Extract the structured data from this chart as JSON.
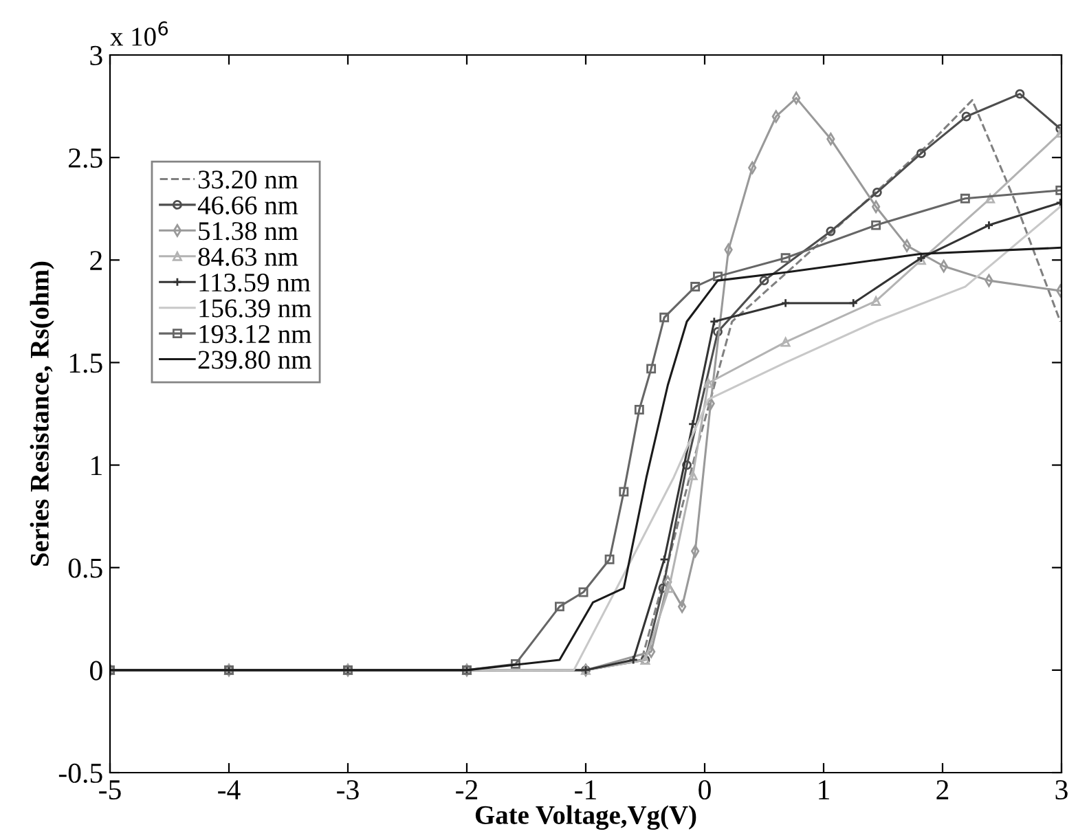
{
  "chart_data": {
    "type": "line",
    "xlabel": "Gate Voltage,Vg(V)",
    "ylabel": "Series Resistance, Rs(ohm)",
    "annotations": [
      "x 10$^{6}$"
    ],
    "xlim": [
      -5,
      3
    ],
    "xticks": [
      -5,
      -4,
      -3,
      -2,
      -1,
      0,
      1,
      2,
      3
    ],
    "ylim": [
      -0.5,
      3
    ],
    "yticks": [
      -0.5,
      0,
      0.5,
      1,
      1.5,
      2,
      2.5,
      3
    ],
    "grid": false,
    "legend": "top left",
    "series": [
      {
        "name": "33.20 nm",
        "color": "#808080",
        "line_style": "dashed",
        "marker": "none",
        "x": [
          -5,
          -4,
          -3,
          -2,
          -1,
          -0.53,
          -0.34,
          -0.08,
          0.23,
          1.0,
          1.93,
          2.25,
          2.6,
          2.99
        ],
        "values": [
          0,
          0,
          0,
          0,
          0,
          0.05,
          0.45,
          1.05,
          1.7,
          2.1,
          2.59,
          2.78,
          2.3,
          1.7
        ]
      },
      {
        "name": "46.66 nm",
        "color": "#4d4d4d",
        "marker": "circle",
        "x": [
          -5,
          -4,
          -3,
          -2,
          -1,
          -0.5,
          -0.35,
          -0.15,
          0.11,
          0.5,
          1.06,
          1.45,
          1.82,
          2.2,
          2.65,
          2.99
        ],
        "values": [
          0,
          0,
          0,
          0,
          0,
          0.05,
          0.4,
          1.0,
          1.65,
          1.9,
          2.14,
          2.33,
          2.52,
          2.7,
          2.81,
          2.64
        ]
      },
      {
        "name": "51.38 nm",
        "color": "#999999",
        "marker": "diamond",
        "x": [
          -5,
          -4,
          -3,
          -2,
          -1,
          -0.45,
          -0.31,
          -0.19,
          -0.08,
          0.05,
          0.2,
          0.4,
          0.6,
          0.77,
          1.06,
          1.44,
          1.7,
          2.01,
          2.39,
          2.99
        ],
        "values": [
          0,
          0,
          0,
          0,
          0,
          0.09,
          0.43,
          0.31,
          0.58,
          1.3,
          2.05,
          2.45,
          2.7,
          2.79,
          2.59,
          2.26,
          2.07,
          1.97,
          1.9,
          1.85
        ]
      },
      {
        "name": "84.63 nm",
        "color": "#b3b3b3",
        "marker": "triangle",
        "x": [
          -5,
          -4,
          -3,
          -2,
          -1,
          -0.5,
          -0.3,
          -0.1,
          0.03,
          0.68,
          1.44,
          1.82,
          2.4,
          2.99
        ],
        "values": [
          0,
          0,
          0,
          0,
          0,
          0.05,
          0.4,
          0.95,
          1.4,
          1.6,
          1.8,
          2.0,
          2.3,
          2.62
        ]
      },
      {
        "name": "113.59 nm",
        "color": "#333333",
        "marker": "cross",
        "x": [
          -5,
          -4,
          -3,
          -2,
          -1,
          -0.6,
          -0.34,
          -0.1,
          0.08,
          0.68,
          1.25,
          1.82,
          2.39,
          2.99
        ],
        "values": [
          0,
          0,
          0,
          0,
          0,
          0.05,
          0.54,
          1.2,
          1.7,
          1.79,
          1.79,
          2.01,
          2.17,
          2.28
        ]
      },
      {
        "name": "156.39 nm",
        "color": "#c8c8c8",
        "marker": "none",
        "x": [
          -5,
          -4,
          -3,
          -2,
          -1.5,
          -1.1,
          -0.65,
          -0.26,
          0.03,
          0.68,
          1.44,
          2.19,
          2.99
        ],
        "values": [
          0,
          0,
          0,
          0,
          0,
          0,
          0.5,
          0.94,
          1.32,
          1.5,
          1.7,
          1.87,
          2.26
        ]
      },
      {
        "name": "193.12 nm",
        "color": "#666666",
        "marker": "square",
        "x": [
          -5,
          -4,
          -3,
          -2,
          -1.59,
          -1.22,
          -1.02,
          -0.8,
          -0.68,
          -0.55,
          -0.45,
          -0.34,
          -0.08,
          0.11,
          0.68,
          1.44,
          2.19,
          2.99
        ],
        "values": [
          0,
          0,
          0,
          0,
          0.03,
          0.31,
          0.38,
          0.54,
          0.87,
          1.27,
          1.47,
          1.72,
          1.87,
          1.92,
          2.01,
          2.17,
          2.3,
          2.34
        ]
      },
      {
        "name": "239.80 nm",
        "color": "#1a1a1a",
        "marker": "none",
        "x": [
          -5,
          -4,
          -3,
          -2,
          -1.22,
          -0.94,
          -0.68,
          -0.49,
          -0.31,
          -0.15,
          0.11,
          0.68,
          1.82,
          2.99
        ],
        "values": [
          0,
          0,
          0,
          0,
          0.05,
          0.33,
          0.4,
          0.94,
          1.39,
          1.7,
          1.9,
          1.94,
          2.03,
          2.06
        ]
      }
    ]
  }
}
